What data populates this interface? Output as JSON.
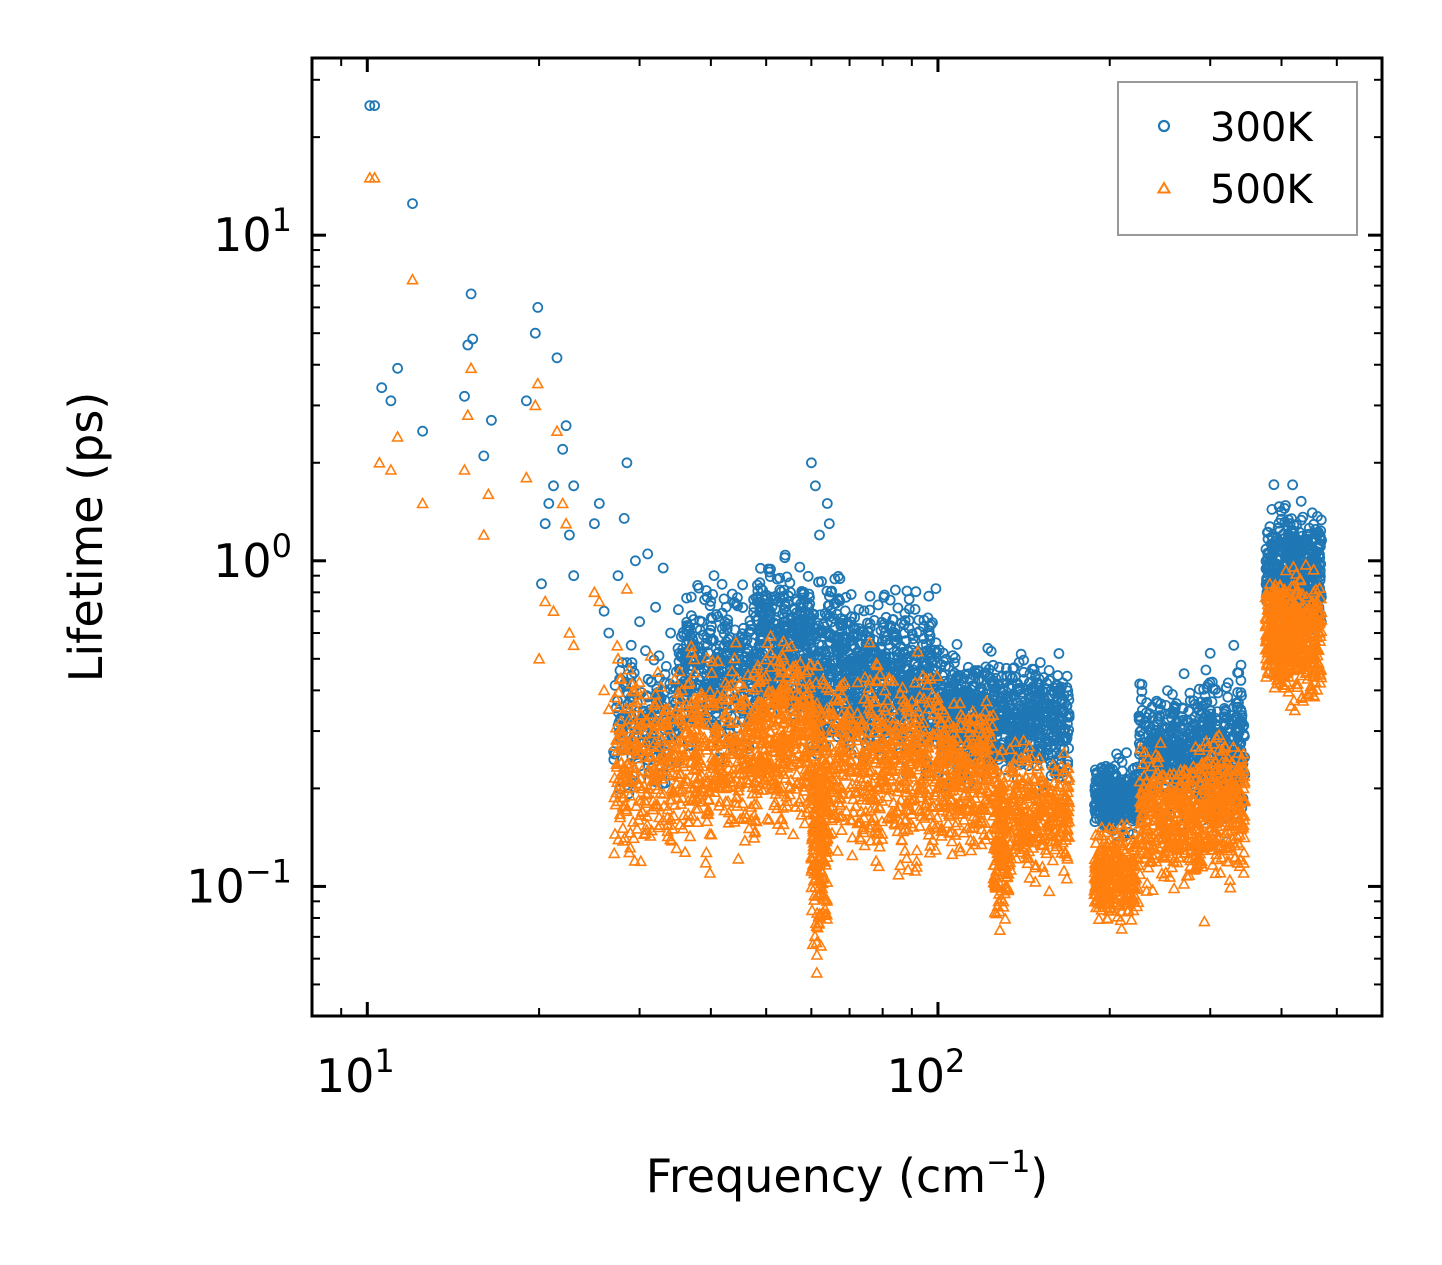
{
  "chart_data": {
    "type": "scatter",
    "title": "",
    "xlabel": "Frequency (cm",
    "xlabel_sup": "−1",
    "xlabel_close": ")",
    "ylabel": "Lifetime (ps)",
    "xscale": "log",
    "yscale": "log",
    "xlim": [
      8,
      600
    ],
    "ylim": [
      0.04,
      35
    ],
    "x_ticks": [
      {
        "value": 10,
        "base": "10",
        "exp": "1"
      },
      {
        "value": 100,
        "base": "10",
        "exp": "2"
      }
    ],
    "y_ticks": [
      {
        "value": 0.1,
        "base": "10",
        "exp": "−1"
      },
      {
        "value": 1,
        "base": "10",
        "exp": "0"
      },
      {
        "value": 10,
        "base": "10",
        "exp": "1"
      }
    ],
    "legend": {
      "position": "top-right",
      "entries": [
        {
          "label": "300K",
          "marker": "circle",
          "color": "#1f77b4"
        },
        {
          "label": "500K",
          "marker": "triangle",
          "color": "#ff7f0e"
        }
      ]
    },
    "series": [
      {
        "name": "300K",
        "color": "#1f77b4",
        "marker": "circle",
        "points": [
          [
            10.1,
            25
          ],
          [
            10.3,
            25
          ],
          [
            12,
            12.5
          ],
          [
            10.6,
            3.4
          ],
          [
            11,
            3.1
          ],
          [
            11.3,
            3.9
          ],
          [
            12.5,
            2.5
          ],
          [
            14.8,
            3.2
          ],
          [
            15,
            4.6
          ],
          [
            15.2,
            6.6
          ],
          [
            15.3,
            4.8
          ],
          [
            16,
            2.1
          ],
          [
            16.5,
            2.7
          ],
          [
            19,
            3.1
          ],
          [
            19.7,
            5
          ],
          [
            19.9,
            6
          ],
          [
            20.2,
            0.85
          ],
          [
            20.5,
            1.3
          ],
          [
            20.8,
            1.5
          ],
          [
            21.2,
            1.7
          ],
          [
            21.5,
            4.2
          ],
          [
            22,
            2.2
          ],
          [
            22.3,
            2.6
          ],
          [
            22.6,
            1.2
          ],
          [
            23,
            1.7
          ],
          [
            23,
            0.9
          ],
          [
            25,
            1.3
          ],
          [
            25.5,
            1.5
          ],
          [
            26,
            0.7
          ],
          [
            26.5,
            0.6
          ],
          [
            27.5,
            0.9
          ],
          [
            28.5,
            2.0
          ],
          [
            28.2,
            1.35
          ],
          [
            29,
            0.55
          ],
          [
            29.5,
            1.0
          ],
          [
            30,
            0.65
          ],
          [
            31,
            1.05
          ],
          [
            32,
            0.72
          ],
          [
            33,
            0.95
          ],
          [
            34,
            0.6
          ],
          [
            60,
            2.0
          ],
          [
            61,
            1.7
          ],
          [
            64,
            1.5
          ],
          [
            62,
            1.2
          ],
          [
            64.5,
            1.3
          ],
          [
            270,
            0.45
          ],
          [
            300,
            0.52
          ],
          [
            330,
            0.55
          ]
        ],
        "bands": [
          {
            "x": [
              27,
              35
            ],
            "ymin": 0.17,
            "ymax": 0.6,
            "n": 180
          },
          {
            "x": [
              35,
              48
            ],
            "ymin": 0.22,
            "ymax": 1.0,
            "n": 380
          },
          {
            "x": [
              48,
              60
            ],
            "ymin": 0.25,
            "ymax": 1.15,
            "n": 380
          },
          {
            "x": [
              60,
              72
            ],
            "ymin": 0.2,
            "ymax": 1.1,
            "n": 320
          },
          {
            "x": [
              72,
              100
            ],
            "ymin": 0.2,
            "ymax": 0.95,
            "n": 500
          },
          {
            "x": [
              100,
              125
            ],
            "ymin": 0.18,
            "ymax": 0.6,
            "n": 360
          },
          {
            "x": [
              125,
              170
            ],
            "ymin": 0.18,
            "ymax": 0.58,
            "n": 460
          },
          {
            "x": [
              188,
              225
            ],
            "ymin": 0.13,
            "ymax": 0.27,
            "n": 300
          },
          {
            "x": [
              225,
              290
            ],
            "ymin": 0.15,
            "ymax": 0.45,
            "n": 380
          },
          {
            "x": [
              290,
              345
            ],
            "ymin": 0.13,
            "ymax": 0.52,
            "n": 300
          },
          {
            "x": [
              375,
              470
            ],
            "ymin": 0.5,
            "ymax": 1.75,
            "n": 520
          }
        ]
      },
      {
        "name": "500K",
        "color": "#ff7f0e",
        "marker": "triangle",
        "points": [
          [
            10.1,
            15
          ],
          [
            10.3,
            15
          ],
          [
            12,
            7.3
          ],
          [
            10.5,
            2.0
          ],
          [
            11,
            1.9
          ],
          [
            11.3,
            2.4
          ],
          [
            12.5,
            1.5
          ],
          [
            14.8,
            1.9
          ],
          [
            15,
            2.8
          ],
          [
            15.2,
            3.9
          ],
          [
            16,
            1.2
          ],
          [
            16.3,
            1.6
          ],
          [
            19,
            1.8
          ],
          [
            19.7,
            3.0
          ],
          [
            19.9,
            3.5
          ],
          [
            20,
            0.5
          ],
          [
            20.5,
            0.75
          ],
          [
            21.2,
            0.7
          ],
          [
            21.5,
            2.5
          ],
          [
            22,
            1.5
          ],
          [
            22.3,
            1.3
          ],
          [
            22.6,
            0.6
          ],
          [
            23,
            0.55
          ],
          [
            25,
            0.8
          ],
          [
            25.5,
            0.75
          ],
          [
            26,
            0.4
          ],
          [
            26.5,
            0.35
          ],
          [
            27.5,
            0.5
          ],
          [
            28.5,
            0.82
          ],
          [
            28,
            0.2
          ],
          [
            293,
            0.078
          ]
        ],
        "bands": [
          {
            "x": [
              27,
              35
            ],
            "ymin": 0.1,
            "ymax": 0.6,
            "n": 260
          },
          {
            "x": [
              35,
              48
            ],
            "ymin": 0.1,
            "ymax": 0.62,
            "n": 380
          },
          {
            "x": [
              48,
              60
            ],
            "ymin": 0.12,
            "ymax": 0.7,
            "n": 380
          },
          {
            "x": [
              60,
              64
            ],
            "ymin": 0.05,
            "ymax": 0.55,
            "n": 260
          },
          {
            "x": [
              64,
              100
            ],
            "ymin": 0.09,
            "ymax": 0.62,
            "n": 560
          },
          {
            "x": [
              100,
              125
            ],
            "ymin": 0.11,
            "ymax": 0.45,
            "n": 300
          },
          {
            "x": [
              125,
              133
            ],
            "ymin": 0.062,
            "ymax": 0.3,
            "n": 160
          },
          {
            "x": [
              133,
              170
            ],
            "ymin": 0.09,
            "ymax": 0.32,
            "n": 300
          },
          {
            "x": [
              188,
              225
            ],
            "ymin": 0.07,
            "ymax": 0.17,
            "n": 280
          },
          {
            "x": [
              225,
              290
            ],
            "ymin": 0.085,
            "ymax": 0.3,
            "n": 360
          },
          {
            "x": [
              290,
              345
            ],
            "ymin": 0.09,
            "ymax": 0.35,
            "n": 280
          },
          {
            "x": [
              375,
              470
            ],
            "ymin": 0.32,
            "ymax": 1.05,
            "n": 520
          }
        ]
      }
    ]
  }
}
